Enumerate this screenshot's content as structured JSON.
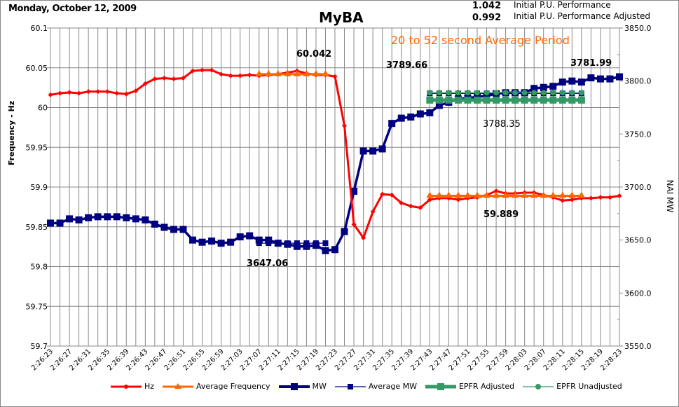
{
  "chart_data": {
    "type": "line",
    "title": "MyBA",
    "date": "Monday, October 12, 2009",
    "ylabel": "Frequency - Hz",
    "y2label": "NAI MW",
    "ylim": [
      59.7,
      60.1
    ],
    "y2lim": [
      3550,
      3850
    ],
    "yticks": [
      "60.1",
      "60.05",
      "60",
      "59.95",
      "59.9",
      "59.85",
      "59.8",
      "59.75",
      "59.7"
    ],
    "y2ticks": [
      "3850.0",
      "3800.0",
      "3750.0",
      "3700.0",
      "3650.0",
      "3600.0",
      "3550.0"
    ],
    "grid": true,
    "legend_placement": "bottom",
    "x": [
      "2:26:23",
      "2:26:25",
      "2:26:27",
      "2:26:29",
      "2:26:31",
      "2:26:33",
      "2:26:35",
      "2:26:37",
      "2:26:39",
      "2:26:41",
      "2:26:43",
      "2:26:45",
      "2:26:47",
      "2:26:49",
      "2:26:51",
      "2:26:53",
      "2:26:55",
      "2:26:57",
      "2:26:59",
      "2:27:01",
      "2:27:03",
      "2:27:05",
      "2:27:07",
      "2:27:09",
      "2:27:11",
      "2:27:13",
      "2:27:15",
      "2:27:17",
      "2:27:19",
      "2:27:21",
      "2:27:23",
      "2:27:25",
      "2:27:27",
      "2:27:29",
      "2:27:31",
      "2:27:33",
      "2:27:35",
      "2:27:37",
      "2:27:39",
      "2:27:41",
      "2:27:43",
      "2:27:45",
      "2:27:47",
      "2:27:49",
      "2:27:51",
      "2:27:53",
      "2:27:55",
      "2:27:57",
      "2:27:59",
      "2:28:01",
      "2:28:03",
      "2:28:05",
      "2:28:07",
      "2:28:09",
      "2:28:11",
      "2:28:13",
      "2:28:15",
      "2:28:17",
      "2:28:19",
      "2:28:21",
      "2:28:23"
    ],
    "xtick_labels": [
      "2:26:23",
      "2:26:27",
      "2:26:31",
      "2:26:35",
      "2:26:39",
      "2:26:43",
      "2:26:47",
      "2:26:51",
      "2:26:55",
      "2:26:59",
      "2:27:03",
      "2:27:07",
      "2:27:11",
      "2:27:15",
      "2:27:19",
      "2:27:23",
      "2:27:27",
      "2:27:31",
      "2:27:35",
      "2:27:39",
      "2:27:43",
      "2:27:47",
      "2:27:51",
      "2:27:55",
      "2:27:59",
      "2:28:03",
      "2:28:07",
      "2:28:11",
      "2:28:15",
      "2:28:19",
      "2:28:23"
    ],
    "series": [
      {
        "name": "Hz",
        "axis": "left",
        "color": "#ff0000",
        "values": [
          60.016,
          60.018,
          60.019,
          60.018,
          60.02,
          60.02,
          60.02,
          60.018,
          60.017,
          60.021,
          60.03,
          60.036,
          60.037,
          60.036,
          60.037,
          60.046,
          60.047,
          60.047,
          60.042,
          60.04,
          60.04,
          60.041,
          60.04,
          60.041,
          60.042,
          60.044,
          60.046,
          60.043,
          60.041,
          60.041,
          60.039,
          59.977,
          59.853,
          59.836,
          59.869,
          59.891,
          59.89,
          59.88,
          59.876,
          59.874,
          59.884,
          59.886,
          59.886,
          59.884,
          59.886,
          59.887,
          59.89,
          59.895,
          59.892,
          59.892,
          59.893,
          59.893,
          59.89,
          59.887,
          59.883,
          59.884,
          59.886,
          59.886,
          59.887,
          59.887,
          59.889
        ]
      },
      {
        "name": "Average Frequency",
        "axis": "left",
        "color": "#ff6600",
        "segments": [
          {
            "from": "2:27:07",
            "to": "2:27:21",
            "value": 60.042
          },
          {
            "from": "2:27:43",
            "to": "2:28:15",
            "value": 59.889
          }
        ]
      },
      {
        "name": "MW",
        "axis": "right",
        "color": "#000080",
        "values": [
          3666,
          3666,
          3670,
          3669,
          3671,
          3672,
          3672,
          3672,
          3671,
          3670,
          3669,
          3665,
          3662,
          3660,
          3660,
          3650,
          3648,
          3649,
          3647,
          3648,
          3653,
          3654,
          3650,
          3650,
          3647,
          3646,
          3644,
          3644,
          3645,
          3640,
          3641,
          3658,
          3696,
          3734,
          3734,
          3736,
          3760,
          3765,
          3766,
          3769,
          3770,
          3777,
          3780,
          3783,
          3784,
          3785,
          3786,
          3788,
          3789,
          3789,
          3789,
          3793,
          3794,
          3795,
          3799,
          3800,
          3799,
          3803,
          3802,
          3802,
          3804
        ]
      },
      {
        "name": "Average MW",
        "axis": "right",
        "color": "#000080",
        "segments": [
          {
            "from": "2:27:07",
            "to": "2:27:21",
            "value": 3647.06
          },
          {
            "from": "2:27:43",
            "to": "2:28:15",
            "value": 3788.35
          }
        ]
      },
      {
        "name": "EPFR  Adjusted",
        "color": "#339966",
        "segments": [
          {
            "from": "2:27:43",
            "to": "2:28:15",
            "value": 0.992
          }
        ]
      },
      {
        "name": "EPFR Unadjusted",
        "color": "#339966",
        "segments": [
          {
            "from": "2:27:43",
            "to": "2:28:15",
            "value": 1.042
          }
        ]
      }
    ],
    "annotations": {
      "avg_freq_1": "60.042",
      "avg_freq_2": "59.889",
      "avg_mw_1": "3647.06",
      "avg_mw_2": "3788.35",
      "mw_a": "3789.66",
      "mw_b": "3781.99",
      "epfr_unadj": "1.042",
      "epfr_adj": "0.992",
      "period": "20 to 52 second Average Period",
      "perf": "Initial P.U. Performance",
      "perf_adj": "Initial P.U. Performance Adjusted"
    }
  }
}
